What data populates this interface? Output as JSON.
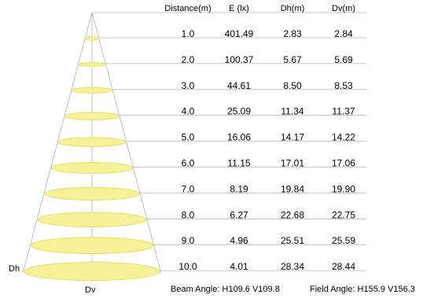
{
  "headers": [
    "Distance(m)",
    "E (lx)",
    "Dh(m)",
    "Dv(m)"
  ],
  "rows": [
    {
      "distance": "1.0",
      "lux": "401.49",
      "dh": "2.83",
      "dv": "2.84"
    },
    {
      "distance": "2.0",
      "lux": "100.37",
      "dh": "5.67",
      "dv": "5.69"
    },
    {
      "distance": "3.0",
      "lux": "44.61",
      "dh": "8.50",
      "dv": "8.53"
    },
    {
      "distance": "4.0",
      "lux": "25.09",
      "dh": "11.34",
      "dv": "11.37"
    },
    {
      "distance": "5.0",
      "lux": "16.06",
      "dh": "14.17",
      "dv": "14.22"
    },
    {
      "distance": "6.0",
      "lux": "11.15",
      "dh": "17.01",
      "dv": "17.06"
    },
    {
      "distance": "7.0",
      "lux": "8.19",
      "dh": "19.84",
      "dv": "19.90"
    },
    {
      "distance": "8.0",
      "lux": "6.27",
      "dh": "22.68",
      "dv": "22.75"
    },
    {
      "distance": "9.0",
      "lux": "4.96",
      "dh": "25.51",
      "dv": "25.59"
    },
    {
      "distance": "10.0",
      "lux": "4.01",
      "dh": "28.34",
      "dv": "28.44"
    }
  ],
  "axis_labels": {
    "dh": "Dh",
    "dv": "Dv"
  },
  "footer": {
    "beam_angle": "Beam Angle: H109.6 V109.8",
    "field_angle": "Field Angle: H155.9 V156.3"
  },
  "colors": {
    "ellipse_fill": "#f7f29a",
    "ellipse_stroke": "#e8de5a",
    "lines": "#b4b4b4"
  }
}
